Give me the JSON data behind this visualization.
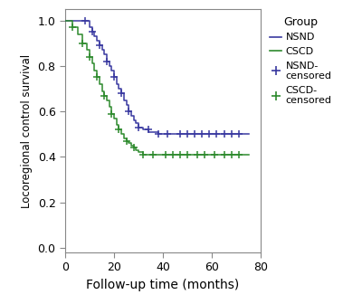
{
  "title": "",
  "xlabel": "Follow-up time (months)",
  "ylabel": "Locoregional control survival",
  "xlim": [
    0,
    80
  ],
  "ylim": [
    -0.02,
    1.05
  ],
  "xticks": [
    0,
    20,
    40,
    60,
    80
  ],
  "yticks": [
    0.0,
    0.2,
    0.4,
    0.6,
    0.8,
    1.0
  ],
  "nsnd_color": "#3939a0",
  "cscd_color": "#2d8a2d",
  "legend_title": "Group",
  "nsnd_steps_x": [
    0,
    8,
    10,
    11,
    12,
    13,
    14,
    15,
    16,
    17,
    18,
    19,
    20,
    21,
    22,
    23,
    24,
    25,
    26,
    27,
    28,
    29,
    30,
    32,
    34,
    36,
    38,
    40,
    42,
    44,
    46,
    75
  ],
  "nsnd_steps_y": [
    1.0,
    1.0,
    0.97,
    0.95,
    0.93,
    0.91,
    0.89,
    0.87,
    0.85,
    0.82,
    0.8,
    0.78,
    0.75,
    0.72,
    0.7,
    0.68,
    0.65,
    0.63,
    0.6,
    0.58,
    0.56,
    0.55,
    0.53,
    0.52,
    0.51,
    0.51,
    0.5,
    0.5,
    0.5,
    0.5,
    0.5,
    0.5
  ],
  "cscd_steps_x": [
    0,
    3,
    5,
    7,
    9,
    10,
    11,
    12,
    13,
    14,
    15,
    16,
    17,
    18,
    19,
    20,
    21,
    22,
    23,
    24,
    25,
    26,
    27,
    28,
    29,
    30,
    32,
    34,
    36,
    38,
    40,
    75
  ],
  "cscd_steps_y": [
    1.0,
    0.97,
    0.94,
    0.9,
    0.87,
    0.84,
    0.81,
    0.78,
    0.75,
    0.72,
    0.69,
    0.67,
    0.65,
    0.62,
    0.59,
    0.57,
    0.54,
    0.52,
    0.5,
    0.48,
    0.47,
    0.46,
    0.45,
    0.44,
    0.43,
    0.42,
    0.41,
    0.41,
    0.41,
    0.41,
    0.41,
    0.41
  ],
  "nsnd_censor_x_curve": [
    8,
    11,
    14,
    17,
    20,
    23,
    26,
    30,
    34,
    38,
    42
  ],
  "nsnd_censor_y_curve": [
    1.0,
    0.95,
    0.89,
    0.82,
    0.75,
    0.68,
    0.6,
    0.53,
    0.52,
    0.5,
    0.5
  ],
  "nsnd_censor_x_flat": [
    47,
    50,
    53,
    56,
    59,
    62,
    65,
    68,
    71
  ],
  "nsnd_censor_y_flat": [
    0.5,
    0.5,
    0.5,
    0.5,
    0.5,
    0.5,
    0.5,
    0.5,
    0.5
  ],
  "cscd_censor_x_curve": [
    3,
    7,
    10,
    13,
    16,
    19,
    22,
    25,
    28,
    32,
    36
  ],
  "cscd_censor_y_curve": [
    0.97,
    0.9,
    0.84,
    0.75,
    0.67,
    0.59,
    0.52,
    0.47,
    0.44,
    0.41,
    0.41
  ],
  "cscd_censor_x_flat": [
    41,
    44,
    47,
    50,
    54,
    57,
    61,
    65,
    68,
    71
  ],
  "cscd_censor_y_flat": [
    0.41,
    0.41,
    0.41,
    0.41,
    0.41,
    0.41,
    0.41,
    0.41,
    0.41,
    0.41
  ],
  "fig_width": 4.0,
  "fig_height": 3.36,
  "dpi": 100
}
